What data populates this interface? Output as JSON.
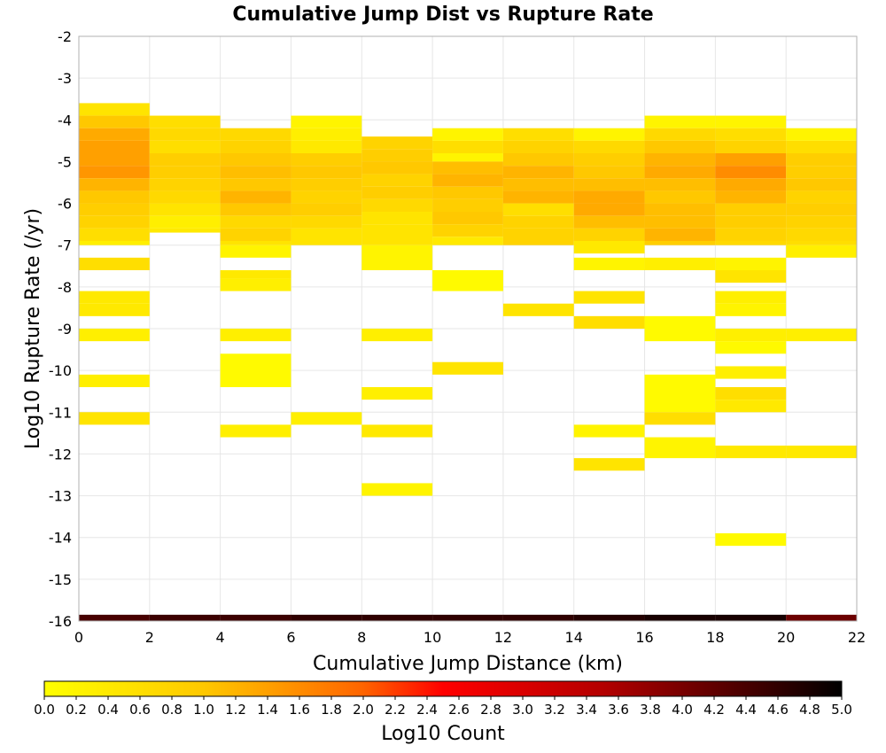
{
  "chart_data": {
    "type": "heatmap",
    "title": "Cumulative Jump Dist vs Rupture Rate",
    "xlabel": "Cumulative Jump Distance (km)",
    "ylabel": "Log10 Rupture Rate (/yr)",
    "xlim": [
      0,
      22
    ],
    "ylim": [
      -16,
      -2
    ],
    "x_ticks": [
      0,
      2,
      4,
      6,
      8,
      10,
      12,
      14,
      16,
      18,
      20,
      22
    ],
    "y_ticks": [
      -2,
      -3,
      -4,
      -5,
      -6,
      -7,
      -8,
      -9,
      -10,
      -11,
      -12,
      -13,
      -14,
      -15,
      -16
    ],
    "x_bin_width": 2,
    "y_bin_height": 0.3,
    "grid": true,
    "colorbar": {
      "label": "Log10 Count",
      "min": 0,
      "max": 5,
      "ticks": [
        "0.0",
        "0.2",
        "0.4",
        "0.6",
        "0.8",
        "1.0",
        "1.2",
        "1.4",
        "1.6",
        "1.8",
        "2.0",
        "2.2",
        "2.4",
        "2.6",
        "2.8",
        "3.0",
        "3.2",
        "3.4",
        "3.6",
        "3.8",
        "4.0",
        "4.2",
        "4.4",
        "4.6",
        "4.8",
        "5.0"
      ],
      "placement": "bottom"
    },
    "columns": [
      {
        "x": 0,
        "cells": [
          [
            -3.9,
            -3.6,
            0.5
          ],
          [
            -4.2,
            -3.9,
            1.0
          ],
          [
            -4.5,
            -4.2,
            1.3
          ],
          [
            -4.8,
            -4.5,
            1.4
          ],
          [
            -5.1,
            -4.8,
            1.4
          ],
          [
            -5.4,
            -5.1,
            1.5
          ],
          [
            -5.7,
            -5.4,
            1.2
          ],
          [
            -6.0,
            -5.7,
            1.0
          ],
          [
            -6.3,
            -6.0,
            0.9
          ],
          [
            -6.6,
            -6.3,
            0.8
          ],
          [
            -6.9,
            -6.6,
            0.6
          ],
          [
            -7.0,
            -6.9,
            0.3
          ],
          [
            -7.6,
            -7.3,
            0.6
          ],
          [
            -8.4,
            -8.1,
            0.4
          ],
          [
            -8.7,
            -8.4,
            0.4
          ],
          [
            -9.3,
            -9.0,
            0.3
          ],
          [
            -10.4,
            -10.1,
            0.3
          ],
          [
            -11.3,
            -11.0,
            0.5
          ]
        ]
      },
      {
        "x": 2,
        "cells": [
          [
            -4.2,
            -3.9,
            0.6
          ],
          [
            -4.5,
            -4.2,
            0.7
          ],
          [
            -4.8,
            -4.5,
            0.6
          ],
          [
            -5.1,
            -4.8,
            0.9
          ],
          [
            -5.4,
            -5.1,
            0.9
          ],
          [
            -5.7,
            -5.4,
            0.8
          ],
          [
            -6.0,
            -5.7,
            0.7
          ],
          [
            -6.3,
            -6.0,
            0.5
          ],
          [
            -6.6,
            -6.3,
            0.3
          ],
          [
            -6.7,
            -6.6,
            0.4
          ]
        ]
      },
      {
        "x": 4,
        "cells": [
          [
            -4.5,
            -4.2,
            0.7
          ],
          [
            -4.8,
            -4.5,
            0.8
          ],
          [
            -5.1,
            -4.8,
            1.0
          ],
          [
            -5.4,
            -5.1,
            1.1
          ],
          [
            -5.7,
            -5.4,
            1.0
          ],
          [
            -6.0,
            -5.7,
            1.2
          ],
          [
            -6.3,
            -6.0,
            1.0
          ],
          [
            -6.6,
            -6.3,
            0.7
          ],
          [
            -6.9,
            -6.6,
            0.8
          ],
          [
            -7.0,
            -6.9,
            0.5
          ],
          [
            -7.3,
            -7.0,
            0.2
          ],
          [
            -7.8,
            -7.6,
            0.4
          ],
          [
            -8.1,
            -7.8,
            0.3
          ],
          [
            -9.3,
            -9.0,
            0.3
          ],
          [
            -10.4,
            -9.6,
            0.1
          ],
          [
            -11.6,
            -11.3,
            0.3
          ]
        ]
      },
      {
        "x": 6,
        "cells": [
          [
            -4.2,
            -3.9,
            0.2
          ],
          [
            -4.5,
            -4.2,
            0.3
          ],
          [
            -4.8,
            -4.5,
            0.4
          ],
          [
            -5.1,
            -4.8,
            0.9
          ],
          [
            -5.4,
            -5.1,
            1.0
          ],
          [
            -5.7,
            -5.4,
            0.9
          ],
          [
            -6.0,
            -5.7,
            0.8
          ],
          [
            -6.3,
            -6.0,
            0.9
          ],
          [
            -6.6,
            -6.3,
            0.7
          ],
          [
            -6.9,
            -6.6,
            0.5
          ],
          [
            -7.0,
            -6.9,
            0.5
          ],
          [
            -11.3,
            -11.0,
            0.3
          ]
        ]
      },
      {
        "x": 8,
        "cells": [
          [
            -4.7,
            -4.4,
            0.8
          ],
          [
            -5.0,
            -4.7,
            0.9
          ],
          [
            -5.3,
            -5.0,
            1.0
          ],
          [
            -5.6,
            -5.3,
            0.8
          ],
          [
            -5.9,
            -5.6,
            0.9
          ],
          [
            -6.2,
            -5.9,
            0.7
          ],
          [
            -6.5,
            -6.2,
            0.5
          ],
          [
            -6.9,
            -6.5,
            0.5
          ],
          [
            -7.0,
            -6.9,
            0.5
          ],
          [
            -7.6,
            -7.0,
            0.2
          ],
          [
            -9.3,
            -9.0,
            0.3
          ],
          [
            -10.7,
            -10.4,
            0.3
          ],
          [
            -11.6,
            -11.3,
            0.4
          ],
          [
            -13.0,
            -12.7,
            0.2
          ]
        ]
      },
      {
        "x": 10,
        "cells": [
          [
            -4.5,
            -4.2,
            0.2
          ],
          [
            -4.8,
            -4.5,
            0.6
          ],
          [
            -5.0,
            -4.8,
            0.2
          ],
          [
            -5.3,
            -5.0,
            1.1
          ],
          [
            -5.6,
            -5.3,
            1.2
          ],
          [
            -5.9,
            -5.6,
            1.0
          ],
          [
            -6.2,
            -5.9,
            0.9
          ],
          [
            -6.5,
            -6.2,
            1.0
          ],
          [
            -6.8,
            -6.5,
            0.8
          ],
          [
            -7.0,
            -6.8,
            0.4
          ],
          [
            -8.1,
            -7.6,
            0.1
          ],
          [
            -10.1,
            -9.8,
            0.5
          ]
        ]
      },
      {
        "x": 12,
        "cells": [
          [
            -4.5,
            -4.2,
            0.6
          ],
          [
            -4.8,
            -4.5,
            0.8
          ],
          [
            -5.1,
            -4.8,
            1.0
          ],
          [
            -5.4,
            -5.1,
            1.2
          ],
          [
            -5.7,
            -5.4,
            1.1
          ],
          [
            -6.0,
            -5.7,
            1.2
          ],
          [
            -6.3,
            -6.0,
            0.6
          ],
          [
            -6.6,
            -6.3,
            0.8
          ],
          [
            -6.9,
            -6.6,
            0.8
          ],
          [
            -7.0,
            -6.9,
            0.8
          ],
          [
            -8.7,
            -8.4,
            0.5
          ]
        ]
      },
      {
        "x": 14,
        "cells": [
          [
            -4.5,
            -4.2,
            0.2
          ],
          [
            -4.8,
            -4.5,
            0.7
          ],
          [
            -5.1,
            -4.8,
            0.9
          ],
          [
            -5.4,
            -5.1,
            1.0
          ],
          [
            -5.7,
            -5.4,
            1.1
          ],
          [
            -6.0,
            -5.7,
            1.3
          ],
          [
            -6.3,
            -6.0,
            1.3
          ],
          [
            -6.6,
            -6.3,
            1.1
          ],
          [
            -6.9,
            -6.6,
            0.8
          ],
          [
            -7.2,
            -6.9,
            0.4
          ],
          [
            -7.6,
            -7.3,
            0.2
          ],
          [
            -8.4,
            -8.1,
            0.5
          ],
          [
            -9.0,
            -8.7,
            0.6
          ],
          [
            -11.6,
            -11.3,
            0.2
          ],
          [
            -12.4,
            -12.1,
            0.5
          ]
        ]
      },
      {
        "x": 16,
        "cells": [
          [
            -4.2,
            -3.9,
            0.2
          ],
          [
            -4.5,
            -4.2,
            0.7
          ],
          [
            -4.8,
            -4.5,
            1.0
          ],
          [
            -5.1,
            -4.8,
            1.2
          ],
          [
            -5.4,
            -5.1,
            1.3
          ],
          [
            -5.7,
            -5.4,
            1.1
          ],
          [
            -6.0,
            -5.7,
            1.0
          ],
          [
            -6.3,
            -6.0,
            1.1
          ],
          [
            -6.6,
            -6.3,
            1.1
          ],
          [
            -6.9,
            -6.6,
            1.2
          ],
          [
            -7.0,
            -6.9,
            0.9
          ],
          [
            -7.6,
            -7.3,
            0.3
          ],
          [
            -9.3,
            -8.7,
            0.1
          ],
          [
            -11.0,
            -10.1,
            0.1
          ],
          [
            -11.3,
            -11.0,
            0.6
          ],
          [
            -12.1,
            -11.6,
            0.2
          ]
        ]
      },
      {
        "x": 18,
        "cells": [
          [
            -4.2,
            -3.9,
            0.2
          ],
          [
            -4.5,
            -4.2,
            0.6
          ],
          [
            -4.8,
            -4.5,
            0.8
          ],
          [
            -5.1,
            -4.8,
            1.4
          ],
          [
            -5.4,
            -5.1,
            1.6
          ],
          [
            -5.7,
            -5.4,
            1.3
          ],
          [
            -6.0,
            -5.7,
            1.2
          ],
          [
            -6.3,
            -6.0,
            0.9
          ],
          [
            -6.6,
            -6.3,
            0.9
          ],
          [
            -6.9,
            -6.6,
            0.8
          ],
          [
            -7.0,
            -6.9,
            0.7
          ],
          [
            -7.6,
            -7.3,
            0.2
          ],
          [
            -7.9,
            -7.6,
            0.5
          ],
          [
            -8.4,
            -8.1,
            0.3
          ],
          [
            -8.7,
            -8.4,
            0.2
          ],
          [
            -9.3,
            -9.0,
            0.3
          ],
          [
            -9.6,
            -9.3,
            0.1
          ],
          [
            -10.2,
            -9.9,
            0.3
          ],
          [
            -10.7,
            -10.4,
            0.6
          ],
          [
            -11.0,
            -10.7,
            0.4
          ],
          [
            -12.1,
            -11.8,
            0.4
          ],
          [
            -14.2,
            -13.9,
            0.1
          ]
        ]
      },
      {
        "x": 20,
        "cells": [
          [
            -4.5,
            -4.2,
            0.2
          ],
          [
            -4.8,
            -4.5,
            0.6
          ],
          [
            -5.1,
            -4.8,
            0.9
          ],
          [
            -5.4,
            -5.1,
            0.9
          ],
          [
            -5.7,
            -5.4,
            1.0
          ],
          [
            -6.0,
            -5.7,
            0.8
          ],
          [
            -6.3,
            -6.0,
            0.9
          ],
          [
            -6.6,
            -6.3,
            0.8
          ],
          [
            -6.9,
            -6.6,
            0.7
          ],
          [
            -7.0,
            -6.9,
            0.6
          ],
          [
            -7.3,
            -7.0,
            0.3
          ],
          [
            -9.3,
            -9.0,
            0.3
          ],
          [
            -12.1,
            -11.8,
            0.4
          ]
        ]
      }
    ],
    "bottom_band": {
      "y": [
        -16.0,
        -15.85
      ],
      "segments": [
        [
          0,
          2,
          4.4
        ],
        [
          2,
          4,
          4.5
        ],
        [
          4,
          6,
          4.5
        ],
        [
          6,
          8,
          4.6
        ],
        [
          8,
          10,
          4.6
        ],
        [
          10,
          12,
          4.6
        ],
        [
          12,
          14,
          4.6
        ],
        [
          14,
          16,
          4.7
        ],
        [
          16,
          18,
          4.8
        ],
        [
          18,
          20,
          4.8
        ],
        [
          20,
          22,
          4.1
        ]
      ]
    }
  }
}
